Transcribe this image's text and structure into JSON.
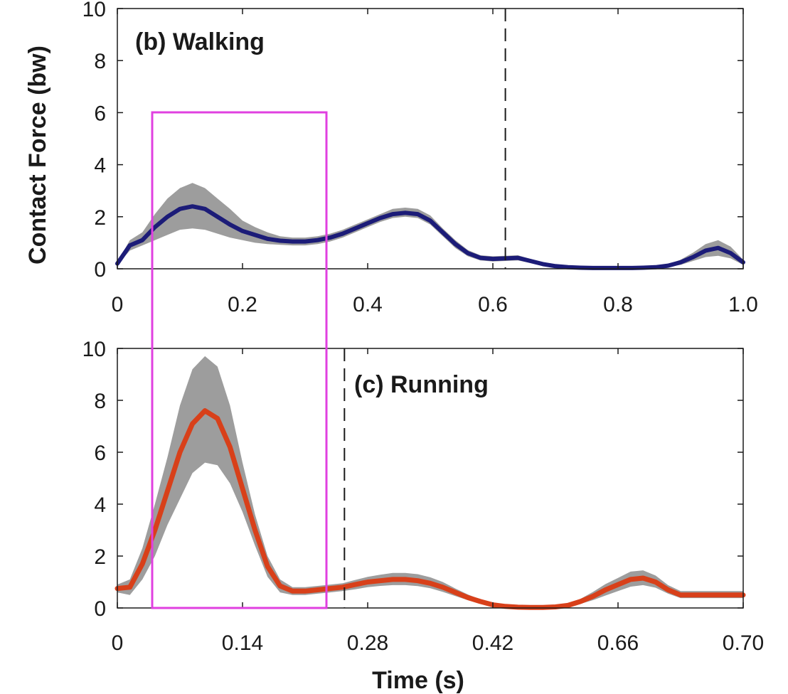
{
  "colors": {
    "walking_line": "#1c1c78",
    "running_line": "#d8401a",
    "band": "#8c8c8c",
    "highlight_box": "#e040e0",
    "axis": "#1a1a1a"
  },
  "ylabel": "Contact Force (bw)",
  "xlabel": "Time (s)",
  "chart_data": [
    {
      "type": "line",
      "panel": "top",
      "title": "(b) Walking",
      "ylim": [
        0,
        10
      ],
      "xlim": [
        0,
        1.0
      ],
      "y_ticks": [
        "0",
        "2",
        "4",
        "6",
        "8",
        "10"
      ],
      "x_ticks": [
        "0",
        "0.2",
        "0.4",
        "0.6",
        "0.8",
        "1.0"
      ],
      "vertical_dashed_line_x": 0.62,
      "series": [
        {
          "x": [
            0,
            0.02,
            0.04,
            0.06,
            0.08,
            0.1,
            0.12,
            0.14,
            0.16,
            0.18,
            0.2,
            0.22,
            0.24,
            0.26,
            0.28,
            0.3,
            0.32,
            0.34,
            0.36,
            0.38,
            0.4,
            0.42,
            0.44,
            0.46,
            0.48,
            0.5,
            0.52,
            0.54,
            0.56,
            0.58,
            0.6,
            0.62,
            0.64,
            0.66,
            0.68,
            0.7,
            0.72,
            0.74,
            0.76,
            0.78,
            0.8,
            0.82,
            0.84,
            0.86,
            0.88,
            0.9,
            0.92,
            0.94,
            0.96,
            0.98,
            1.0
          ],
          "y": [
            0.2,
            0.9,
            1.1,
            1.6,
            2.0,
            2.3,
            2.4,
            2.3,
            2.0,
            1.7,
            1.45,
            1.3,
            1.15,
            1.08,
            1.05,
            1.05,
            1.1,
            1.2,
            1.35,
            1.55,
            1.75,
            1.95,
            2.1,
            2.15,
            2.1,
            1.85,
            1.4,
            0.95,
            0.6,
            0.42,
            0.38,
            0.4,
            0.42,
            0.3,
            0.18,
            0.1,
            0.06,
            0.04,
            0.03,
            0.03,
            0.03,
            0.03,
            0.04,
            0.06,
            0.12,
            0.25,
            0.45,
            0.7,
            0.8,
            0.6,
            0.25
          ],
          "band_lower": [
            0.15,
            0.7,
            0.9,
            1.1,
            1.3,
            1.5,
            1.55,
            1.5,
            1.35,
            1.2,
            1.1,
            1.0,
            0.95,
            0.92,
            0.9,
            0.9,
            0.95,
            1.05,
            1.2,
            1.4,
            1.6,
            1.8,
            1.95,
            2.0,
            1.95,
            1.7,
            1.25,
            0.8,
            0.48,
            0.32,
            0.28,
            0.3,
            0.32,
            0.22,
            0.12,
            0.06,
            0.03,
            0.02,
            0.01,
            0.01,
            0.01,
            0.01,
            0.02,
            0.03,
            0.07,
            0.15,
            0.3,
            0.45,
            0.5,
            0.4,
            0.15
          ],
          "band_upper": [
            0.25,
            1.1,
            1.4,
            2.1,
            2.7,
            3.1,
            3.3,
            3.1,
            2.7,
            2.3,
            1.85,
            1.6,
            1.4,
            1.25,
            1.2,
            1.2,
            1.25,
            1.35,
            1.5,
            1.7,
            1.9,
            2.1,
            2.3,
            2.35,
            2.3,
            2.05,
            1.55,
            1.1,
            0.72,
            0.52,
            0.48,
            0.5,
            0.52,
            0.38,
            0.24,
            0.14,
            0.09,
            0.06,
            0.05,
            0.05,
            0.05,
            0.05,
            0.06,
            0.09,
            0.17,
            0.35,
            0.62,
            0.95,
            1.1,
            0.85,
            0.35
          ]
        }
      ]
    },
    {
      "type": "line",
      "panel": "bottom",
      "title": "(c) Running",
      "ylim": [
        0,
        10
      ],
      "xlim": [
        0,
        0.7
      ],
      "y_ticks": [
        "0",
        "2",
        "4",
        "6",
        "8",
        "10"
      ],
      "x_ticks": [
        "0",
        "0.14",
        "0.28",
        "0.42",
        "0.66",
        "0.70"
      ],
      "vertical_dashed_line_x": 0.254,
      "series": [
        {
          "x": [
            0,
            0.014,
            0.028,
            0.042,
            0.056,
            0.07,
            0.084,
            0.098,
            0.112,
            0.126,
            0.14,
            0.154,
            0.168,
            0.182,
            0.196,
            0.21,
            0.224,
            0.238,
            0.252,
            0.266,
            0.28,
            0.294,
            0.308,
            0.322,
            0.336,
            0.35,
            0.364,
            0.378,
            0.392,
            0.406,
            0.42,
            0.434,
            0.448,
            0.462,
            0.476,
            0.49,
            0.504,
            0.518,
            0.532,
            0.546,
            0.56,
            0.574,
            0.588,
            0.602,
            0.616,
            0.63,
            0.644,
            0.658,
            0.672,
            0.686,
            0.7
          ],
          "y": [
            0.75,
            0.8,
            1.7,
            3.0,
            4.5,
            6.0,
            7.1,
            7.6,
            7.3,
            6.2,
            4.6,
            3.0,
            1.6,
            0.85,
            0.65,
            0.65,
            0.7,
            0.75,
            0.8,
            0.9,
            1.0,
            1.05,
            1.1,
            1.1,
            1.05,
            0.95,
            0.8,
            0.6,
            0.4,
            0.25,
            0.12,
            0.06,
            0.03,
            0.02,
            0.02,
            0.04,
            0.1,
            0.25,
            0.45,
            0.7,
            0.9,
            1.1,
            1.15,
            1.0,
            0.7,
            0.5,
            0.5,
            0.5,
            0.5,
            0.5,
            0.5
          ],
          "band_lower": [
            0.6,
            0.5,
            1.1,
            2.0,
            3.2,
            4.2,
            5.2,
            5.6,
            5.5,
            4.8,
            3.7,
            2.4,
            1.2,
            0.6,
            0.5,
            0.5,
            0.55,
            0.6,
            0.65,
            0.72,
            0.8,
            0.85,
            0.88,
            0.88,
            0.84,
            0.76,
            0.62,
            0.46,
            0.3,
            0.18,
            0.08,
            0.04,
            0.02,
            0.01,
            0.01,
            0.02,
            0.06,
            0.16,
            0.3,
            0.48,
            0.65,
            0.82,
            0.88,
            0.78,
            0.55,
            0.38,
            0.38,
            0.38,
            0.38,
            0.38,
            0.38
          ],
          "band_upper": [
            0.9,
            1.1,
            2.3,
            4.0,
            5.8,
            7.8,
            9.2,
            9.7,
            9.3,
            7.8,
            5.6,
            3.6,
            2.0,
            1.1,
            0.8,
            0.8,
            0.85,
            0.9,
            0.95,
            1.08,
            1.2,
            1.28,
            1.35,
            1.35,
            1.3,
            1.18,
            1.0,
            0.75,
            0.52,
            0.33,
            0.17,
            0.09,
            0.05,
            0.03,
            0.03,
            0.06,
            0.15,
            0.35,
            0.62,
            0.92,
            1.16,
            1.4,
            1.45,
            1.25,
            0.88,
            0.65,
            0.65,
            0.65,
            0.65,
            0.65,
            0.65
          ]
        }
      ]
    }
  ]
}
